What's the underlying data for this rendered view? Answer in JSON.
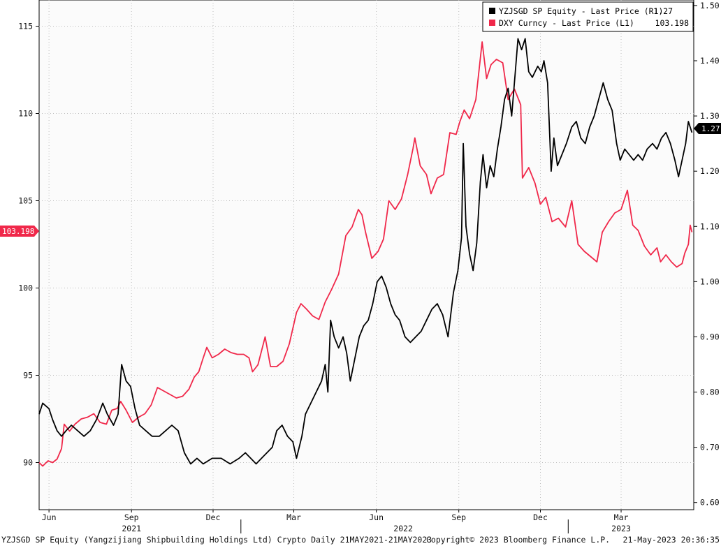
{
  "chart_data": {
    "type": "line",
    "y_left": {
      "ticks": [
        90,
        95,
        100,
        105,
        110,
        115
      ],
      "range": [
        87.3,
        116.5
      ]
    },
    "y_right": {
      "ticks": [
        "0.60",
        "0.70",
        "0.80",
        "0.90",
        "1.00",
        "1.10",
        "1.20",
        "1.30",
        "1.40",
        "1.50"
      ],
      "range": [
        0.587,
        1.51
      ]
    },
    "x_range": [
      "2021-05-21",
      "2023-05-21"
    ],
    "x_month_labels": [
      {
        "label": "Jun",
        "date": "2021-06-01"
      },
      {
        "label": "Sep",
        "date": "2021-09-01"
      },
      {
        "label": "Dec",
        "date": "2021-12-01"
      },
      {
        "label": "Mar",
        "date": "2022-03-01"
      },
      {
        "label": "Jun",
        "date": "2022-06-01"
      },
      {
        "label": "Sep",
        "date": "2022-09-01"
      },
      {
        "label": "Dec",
        "date": "2022-12-01"
      },
      {
        "label": "Mar",
        "date": "2023-03-01"
      }
    ],
    "x_year_labels": [
      {
        "label": "2021",
        "date": "2021-09-01"
      },
      {
        "label": "2022",
        "date": "2022-07-01"
      },
      {
        "label": "2023",
        "date": "2023-03-01"
      }
    ],
    "grid": true,
    "legend_position": "top-right",
    "series": [
      {
        "name": "YZJSGD SP Equity - Last Price (R1)",
        "last_value": "1.27",
        "axis": "right",
        "color": "#000000",
        "points": [
          [
            "2021-05-21",
            0.76
          ],
          [
            "2021-05-25",
            0.78
          ],
          [
            "2021-06-01",
            0.77
          ],
          [
            "2021-06-05",
            0.75
          ],
          [
            "2021-06-10",
            0.73
          ],
          [
            "2021-06-15",
            0.72
          ],
          [
            "2021-06-20",
            0.73
          ],
          [
            "2021-06-26",
            0.74
          ],
          [
            "2021-07-03",
            0.73
          ],
          [
            "2021-07-10",
            0.72
          ],
          [
            "2021-07-17",
            0.73
          ],
          [
            "2021-07-24",
            0.75
          ],
          [
            "2021-07-31",
            0.78
          ],
          [
            "2021-08-05",
            0.76
          ],
          [
            "2021-08-12",
            0.74
          ],
          [
            "2021-08-17",
            0.76
          ],
          [
            "2021-08-21",
            0.85
          ],
          [
            "2021-08-26",
            0.82
          ],
          [
            "2021-08-31",
            0.81
          ],
          [
            "2021-09-05",
            0.77
          ],
          [
            "2021-09-10",
            0.74
          ],
          [
            "2021-09-17",
            0.73
          ],
          [
            "2021-09-24",
            0.72
          ],
          [
            "2021-10-02",
            0.72
          ],
          [
            "2021-10-09",
            0.73
          ],
          [
            "2021-10-16",
            0.74
          ],
          [
            "2021-10-23",
            0.73
          ],
          [
            "2021-10-30",
            0.69
          ],
          [
            "2021-11-06",
            0.67
          ],
          [
            "2021-11-13",
            0.68
          ],
          [
            "2021-11-20",
            0.67
          ],
          [
            "2021-11-30",
            0.68
          ],
          [
            "2021-12-10",
            0.68
          ],
          [
            "2021-12-20",
            0.67
          ],
          [
            "2021-12-30",
            0.68
          ],
          [
            "2022-01-06",
            0.69
          ],
          [
            "2022-01-12",
            0.68
          ],
          [
            "2022-01-18",
            0.67
          ],
          [
            "2022-01-24",
            0.68
          ],
          [
            "2022-01-30",
            0.69
          ],
          [
            "2022-02-05",
            0.7
          ],
          [
            "2022-02-10",
            0.73
          ],
          [
            "2022-02-16",
            0.74
          ],
          [
            "2022-02-22",
            0.72
          ],
          [
            "2022-02-28",
            0.71
          ],
          [
            "2022-03-04",
            0.68
          ],
          [
            "2022-03-10",
            0.72
          ],
          [
            "2022-03-14",
            0.76
          ],
          [
            "2022-03-20",
            0.78
          ],
          [
            "2022-03-26",
            0.8
          ],
          [
            "2022-04-01",
            0.82
          ],
          [
            "2022-04-05",
            0.85
          ],
          [
            "2022-04-08",
            0.8
          ],
          [
            "2022-04-11",
            0.93
          ],
          [
            "2022-04-15",
            0.9
          ],
          [
            "2022-04-20",
            0.88
          ],
          [
            "2022-04-25",
            0.9
          ],
          [
            "2022-04-29",
            0.87
          ],
          [
            "2022-05-03",
            0.82
          ],
          [
            "2022-05-08",
            0.86
          ],
          [
            "2022-05-13",
            0.9
          ],
          [
            "2022-05-18",
            0.92
          ],
          [
            "2022-05-23",
            0.93
          ],
          [
            "2022-05-28",
            0.96
          ],
          [
            "2022-06-02",
            1.0
          ],
          [
            "2022-06-07",
            1.01
          ],
          [
            "2022-06-12",
            0.99
          ],
          [
            "2022-06-17",
            0.96
          ],
          [
            "2022-06-22",
            0.94
          ],
          [
            "2022-06-27",
            0.93
          ],
          [
            "2022-07-03",
            0.9
          ],
          [
            "2022-07-09",
            0.89
          ],
          [
            "2022-07-15",
            0.9
          ],
          [
            "2022-07-21",
            0.91
          ],
          [
            "2022-07-27",
            0.93
          ],
          [
            "2022-08-02",
            0.95
          ],
          [
            "2022-08-08",
            0.96
          ],
          [
            "2022-08-14",
            0.94
          ],
          [
            "2022-08-20",
            0.9
          ],
          [
            "2022-08-26",
            0.98
          ],
          [
            "2022-08-31",
            1.02
          ],
          [
            "2022-09-04",
            1.08
          ],
          [
            "2022-09-06",
            1.25
          ],
          [
            "2022-09-09",
            1.1
          ],
          [
            "2022-09-13",
            1.05
          ],
          [
            "2022-09-17",
            1.02
          ],
          [
            "2022-09-21",
            1.07
          ],
          [
            "2022-09-25",
            1.18
          ],
          [
            "2022-09-28",
            1.23
          ],
          [
            "2022-10-02",
            1.17
          ],
          [
            "2022-10-06",
            1.21
          ],
          [
            "2022-10-10",
            1.19
          ],
          [
            "2022-10-14",
            1.24
          ],
          [
            "2022-10-18",
            1.28
          ],
          [
            "2022-10-22",
            1.33
          ],
          [
            "2022-10-26",
            1.35
          ],
          [
            "2022-10-30",
            1.3
          ],
          [
            "2022-11-03",
            1.38
          ],
          [
            "2022-11-06",
            1.44
          ],
          [
            "2022-11-10",
            1.42
          ],
          [
            "2022-11-14",
            1.44
          ],
          [
            "2022-11-18",
            1.38
          ],
          [
            "2022-11-22",
            1.37
          ],
          [
            "2022-11-28",
            1.39
          ],
          [
            "2022-12-02",
            1.38
          ],
          [
            "2022-12-05",
            1.4
          ],
          [
            "2022-12-09",
            1.36
          ],
          [
            "2022-12-13",
            1.2
          ],
          [
            "2022-12-16",
            1.26
          ],
          [
            "2022-12-20",
            1.21
          ],
          [
            "2022-12-25",
            1.23
          ],
          [
            "2022-12-30",
            1.25
          ],
          [
            "2023-01-05",
            1.28
          ],
          [
            "2023-01-10",
            1.29
          ],
          [
            "2023-01-15",
            1.26
          ],
          [
            "2023-01-20",
            1.25
          ],
          [
            "2023-01-25",
            1.28
          ],
          [
            "2023-01-30",
            1.3
          ],
          [
            "2023-02-04",
            1.33
          ],
          [
            "2023-02-09",
            1.36
          ],
          [
            "2023-02-14",
            1.33
          ],
          [
            "2023-02-19",
            1.31
          ],
          [
            "2023-02-24",
            1.25
          ],
          [
            "2023-02-28",
            1.22
          ],
          [
            "2023-03-05",
            1.24
          ],
          [
            "2023-03-10",
            1.23
          ],
          [
            "2023-03-15",
            1.22
          ],
          [
            "2023-03-20",
            1.23
          ],
          [
            "2023-03-25",
            1.22
          ],
          [
            "2023-03-30",
            1.24
          ],
          [
            "2023-04-05",
            1.25
          ],
          [
            "2023-04-10",
            1.24
          ],
          [
            "2023-04-15",
            1.26
          ],
          [
            "2023-04-20",
            1.27
          ],
          [
            "2023-04-25",
            1.25
          ],
          [
            "2023-04-30",
            1.22
          ],
          [
            "2023-05-04",
            1.19
          ],
          [
            "2023-05-08",
            1.22
          ],
          [
            "2023-05-12",
            1.25
          ],
          [
            "2023-05-15",
            1.29
          ],
          [
            "2023-05-19",
            1.27
          ]
        ]
      },
      {
        "name": "DXY Curncy - Last Price (L1)",
        "last_value": "103.198",
        "axis": "left",
        "color": "#f0284a",
        "points": [
          [
            "2021-05-21",
            90.0
          ],
          [
            "2021-05-25",
            89.8
          ],
          [
            "2021-05-31",
            90.1
          ],
          [
            "2021-06-05",
            90.0
          ],
          [
            "2021-06-10",
            90.2
          ],
          [
            "2021-06-15",
            90.8
          ],
          [
            "2021-06-18",
            92.2
          ],
          [
            "2021-06-24",
            91.8
          ],
          [
            "2021-06-30",
            92.2
          ],
          [
            "2021-07-07",
            92.5
          ],
          [
            "2021-07-14",
            92.6
          ],
          [
            "2021-07-21",
            92.8
          ],
          [
            "2021-07-28",
            92.3
          ],
          [
            "2021-08-04",
            92.2
          ],
          [
            "2021-08-10",
            93.0
          ],
          [
            "2021-08-16",
            93.1
          ],
          [
            "2021-08-20",
            93.5
          ],
          [
            "2021-08-26",
            93.0
          ],
          [
            "2021-09-02",
            92.3
          ],
          [
            "2021-09-09",
            92.6
          ],
          [
            "2021-09-16",
            92.8
          ],
          [
            "2021-09-23",
            93.3
          ],
          [
            "2021-09-30",
            94.3
          ],
          [
            "2021-10-07",
            94.1
          ],
          [
            "2021-10-14",
            93.9
          ],
          [
            "2021-10-21",
            93.7
          ],
          [
            "2021-10-28",
            93.8
          ],
          [
            "2021-11-04",
            94.2
          ],
          [
            "2021-11-10",
            94.9
          ],
          [
            "2021-11-15",
            95.2
          ],
          [
            "2021-11-20",
            96.0
          ],
          [
            "2021-11-24",
            96.6
          ],
          [
            "2021-11-30",
            96.0
          ],
          [
            "2021-12-07",
            96.2
          ],
          [
            "2021-12-14",
            96.5
          ],
          [
            "2021-12-21",
            96.3
          ],
          [
            "2021-12-28",
            96.2
          ],
          [
            "2022-01-04",
            96.2
          ],
          [
            "2022-01-10",
            96.0
          ],
          [
            "2022-01-14",
            95.2
          ],
          [
            "2022-01-20",
            95.6
          ],
          [
            "2022-01-28",
            97.2
          ],
          [
            "2022-02-03",
            95.5
          ],
          [
            "2022-02-10",
            95.5
          ],
          [
            "2022-02-17",
            95.8
          ],
          [
            "2022-02-24",
            96.8
          ],
          [
            "2022-03-04",
            98.6
          ],
          [
            "2022-03-09",
            99.1
          ],
          [
            "2022-03-15",
            98.8
          ],
          [
            "2022-03-22",
            98.4
          ],
          [
            "2022-03-29",
            98.2
          ],
          [
            "2022-04-05",
            99.2
          ],
          [
            "2022-04-12",
            99.9
          ],
          [
            "2022-04-20",
            100.8
          ],
          [
            "2022-04-28",
            103.0
          ],
          [
            "2022-05-05",
            103.5
          ],
          [
            "2022-05-12",
            104.5
          ],
          [
            "2022-05-16",
            104.2
          ],
          [
            "2022-05-20",
            103.2
          ],
          [
            "2022-05-27",
            101.7
          ],
          [
            "2022-06-03",
            102.1
          ],
          [
            "2022-06-09",
            102.8
          ],
          [
            "2022-06-15",
            105.0
          ],
          [
            "2022-06-22",
            104.5
          ],
          [
            "2022-06-29",
            105.1
          ],
          [
            "2022-07-06",
            106.5
          ],
          [
            "2022-07-12",
            108.0
          ],
          [
            "2022-07-14",
            108.6
          ],
          [
            "2022-07-20",
            107.0
          ],
          [
            "2022-07-27",
            106.5
          ],
          [
            "2022-08-01",
            105.4
          ],
          [
            "2022-08-08",
            106.3
          ],
          [
            "2022-08-15",
            106.5
          ],
          [
            "2022-08-22",
            108.9
          ],
          [
            "2022-08-29",
            108.8
          ],
          [
            "2022-09-02",
            109.5
          ],
          [
            "2022-09-07",
            110.2
          ],
          [
            "2022-09-13",
            109.7
          ],
          [
            "2022-09-20",
            110.8
          ],
          [
            "2022-09-27",
            114.1
          ],
          [
            "2022-10-02",
            112.0
          ],
          [
            "2022-10-07",
            112.8
          ],
          [
            "2022-10-13",
            113.1
          ],
          [
            "2022-10-20",
            112.9
          ],
          [
            "2022-10-26",
            110.8
          ],
          [
            "2022-11-02",
            111.4
          ],
          [
            "2022-11-09",
            110.5
          ],
          [
            "2022-11-11",
            106.3
          ],
          [
            "2022-11-18",
            106.9
          ],
          [
            "2022-11-25",
            106.0
          ],
          [
            "2022-12-01",
            104.8
          ],
          [
            "2022-12-07",
            105.2
          ],
          [
            "2022-12-14",
            103.8
          ],
          [
            "2022-12-21",
            104.0
          ],
          [
            "2022-12-29",
            103.5
          ],
          [
            "2023-01-05",
            105.0
          ],
          [
            "2023-01-12",
            102.5
          ],
          [
            "2023-01-19",
            102.1
          ],
          [
            "2023-01-26",
            101.8
          ],
          [
            "2023-02-02",
            101.5
          ],
          [
            "2023-02-08",
            103.2
          ],
          [
            "2023-02-15",
            103.8
          ],
          [
            "2023-02-22",
            104.3
          ],
          [
            "2023-03-01",
            104.5
          ],
          [
            "2023-03-08",
            105.6
          ],
          [
            "2023-03-14",
            103.6
          ],
          [
            "2023-03-20",
            103.3
          ],
          [
            "2023-03-27",
            102.4
          ],
          [
            "2023-04-03",
            101.9
          ],
          [
            "2023-04-10",
            102.3
          ],
          [
            "2023-04-14",
            101.5
          ],
          [
            "2023-04-20",
            101.9
          ],
          [
            "2023-04-26",
            101.5
          ],
          [
            "2023-05-02",
            101.2
          ],
          [
            "2023-05-08",
            101.4
          ],
          [
            "2023-05-11",
            102.0
          ],
          [
            "2023-05-15",
            102.5
          ],
          [
            "2023-05-17",
            103.6
          ],
          [
            "2023-05-19",
            103.2
          ]
        ]
      }
    ],
    "value_tags": {
      "left": "103.198",
      "right": "1.27"
    }
  },
  "footer": {
    "left": "YZJSGD SP Equity (Yangzijiang Shipbuilding Holdings Ltd) Crypto  Daily 21MAY2021-21MAY2023",
    "center": "Copyright© 2023 Bloomberg Finance L.P.",
    "right": "21-May-2023 20:36:35"
  }
}
